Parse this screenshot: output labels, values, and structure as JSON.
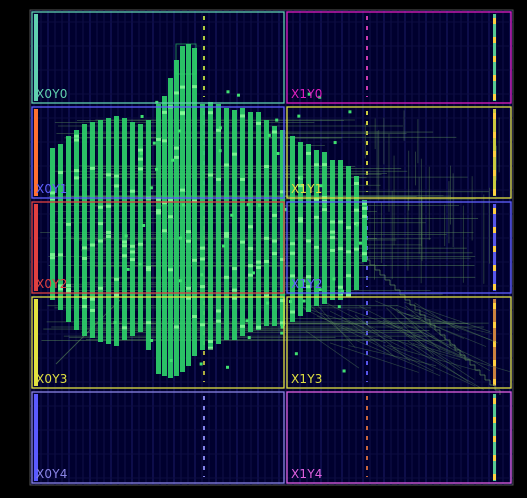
{
  "device_view": {
    "background": "#000000",
    "die_fill": "#00002e",
    "region_grid": {
      "columns": 2,
      "rows": 5
    },
    "regions": [
      {
        "label": "X0Y4",
        "color": "#8a84e6"
      },
      {
        "label": "X1Y4",
        "color": "#e060e0"
      },
      {
        "label": "X0Y3",
        "color": "#e0e040"
      },
      {
        "label": "X1Y3",
        "color": "#e0e040"
      },
      {
        "label": "X0Y2",
        "color": "#e04040"
      },
      {
        "label": "X1Y2",
        "color": "#6060ff"
      },
      {
        "label": "X0Y1",
        "color": "#6060ff"
      },
      {
        "label": "X1Y1",
        "color": "#e0e040"
      },
      {
        "label": "X0Y0",
        "color": "#60d0b0"
      },
      {
        "label": "X1Y0",
        "color": "#e020c0"
      }
    ],
    "placement_color": "#2ed06a",
    "routing_color": "#5a8a5a"
  }
}
